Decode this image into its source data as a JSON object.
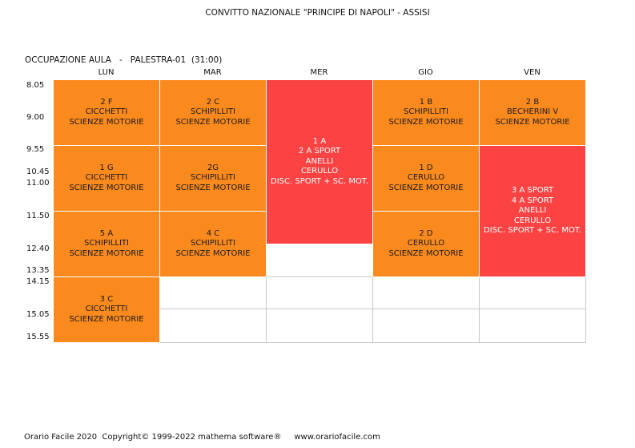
{
  "title": "CONVITTO NAZIONALE \"PRINCIPE DI NAPOLI\" - ASSISI",
  "subtitle": "OCCUPAZIONE AULA   -   PALESTRA-01  (31:00)",
  "days": [
    "LUN",
    "MAR",
    "MER",
    "GIO",
    "VEN"
  ],
  "times": [
    "8.05",
    "9.00",
    "9.55",
    "10.45",
    "11.00",
    "11.50",
    "12.40",
    "13.35",
    "14.15",
    "15.05",
    "15.55"
  ],
  "colors": {
    "orange": "#fb8a1e",
    "red": "#fc4343",
    "grid": "#c8c8c8"
  },
  "lessons": [
    {
      "day": "LUN",
      "lines": [
        "2 F",
        "CICCHETTI",
        "SCIENZE MOTORIE"
      ],
      "color": "orange"
    },
    {
      "day": "LUN",
      "lines": [
        "1 G",
        "CICCHETTI",
        "SCIENZE MOTORIE"
      ],
      "color": "orange"
    },
    {
      "day": "LUN",
      "lines": [
        "5 A",
        "SCHIPILLITI",
        "SCIENZE MOTORIE"
      ],
      "color": "orange"
    },
    {
      "day": "LUN",
      "lines": [
        "3 C",
        "CICCHETTI",
        "SCIENZE MOTORIE"
      ],
      "color": "orange"
    },
    {
      "day": "MAR",
      "lines": [
        "2 C",
        "SCHIPILLITI",
        "SCIENZE MOTORIE"
      ],
      "color": "orange"
    },
    {
      "day": "MAR",
      "lines": [
        "2G",
        "SCHIPILLITI",
        "SCIENZE MOTORIE"
      ],
      "color": "orange"
    },
    {
      "day": "MAR",
      "lines": [
        "4 C",
        "SCHIPILLITI",
        "SCIENZE MOTORIE"
      ],
      "color": "orange"
    },
    {
      "day": "MER",
      "lines": [
        "1 A",
        "2 A SPORT",
        "ANELLI",
        "CERULLO",
        "DISC. SPORT + SC. MOT."
      ],
      "color": "red"
    },
    {
      "day": "GIO",
      "lines": [
        "1 B",
        "SCHIPILLITI",
        "SCIENZE MOTORIE"
      ],
      "color": "orange"
    },
    {
      "day": "GIO",
      "lines": [
        "1 D",
        "CERULLO",
        "SCIENZE MOTORIE"
      ],
      "color": "orange"
    },
    {
      "day": "GIO",
      "lines": [
        "2 D",
        "CERULLO",
        "SCIENZE MOTORIE"
      ],
      "color": "orange"
    },
    {
      "day": "VEN",
      "lines": [
        "2 B",
        "BECHERINI V",
        "SCIENZE MOTORIE"
      ],
      "color": "orange"
    },
    {
      "day": "VEN",
      "lines": [
        "3 A SPORT",
        "4 A SPORT",
        "ANELLI",
        "CERULLO",
        "DISC. SPORT + SC. MOT."
      ],
      "color": "red"
    }
  ],
  "footer": "Orario Facile 2020  Copyright© 1999-2022 mathema software®     www.orariofacile.com"
}
